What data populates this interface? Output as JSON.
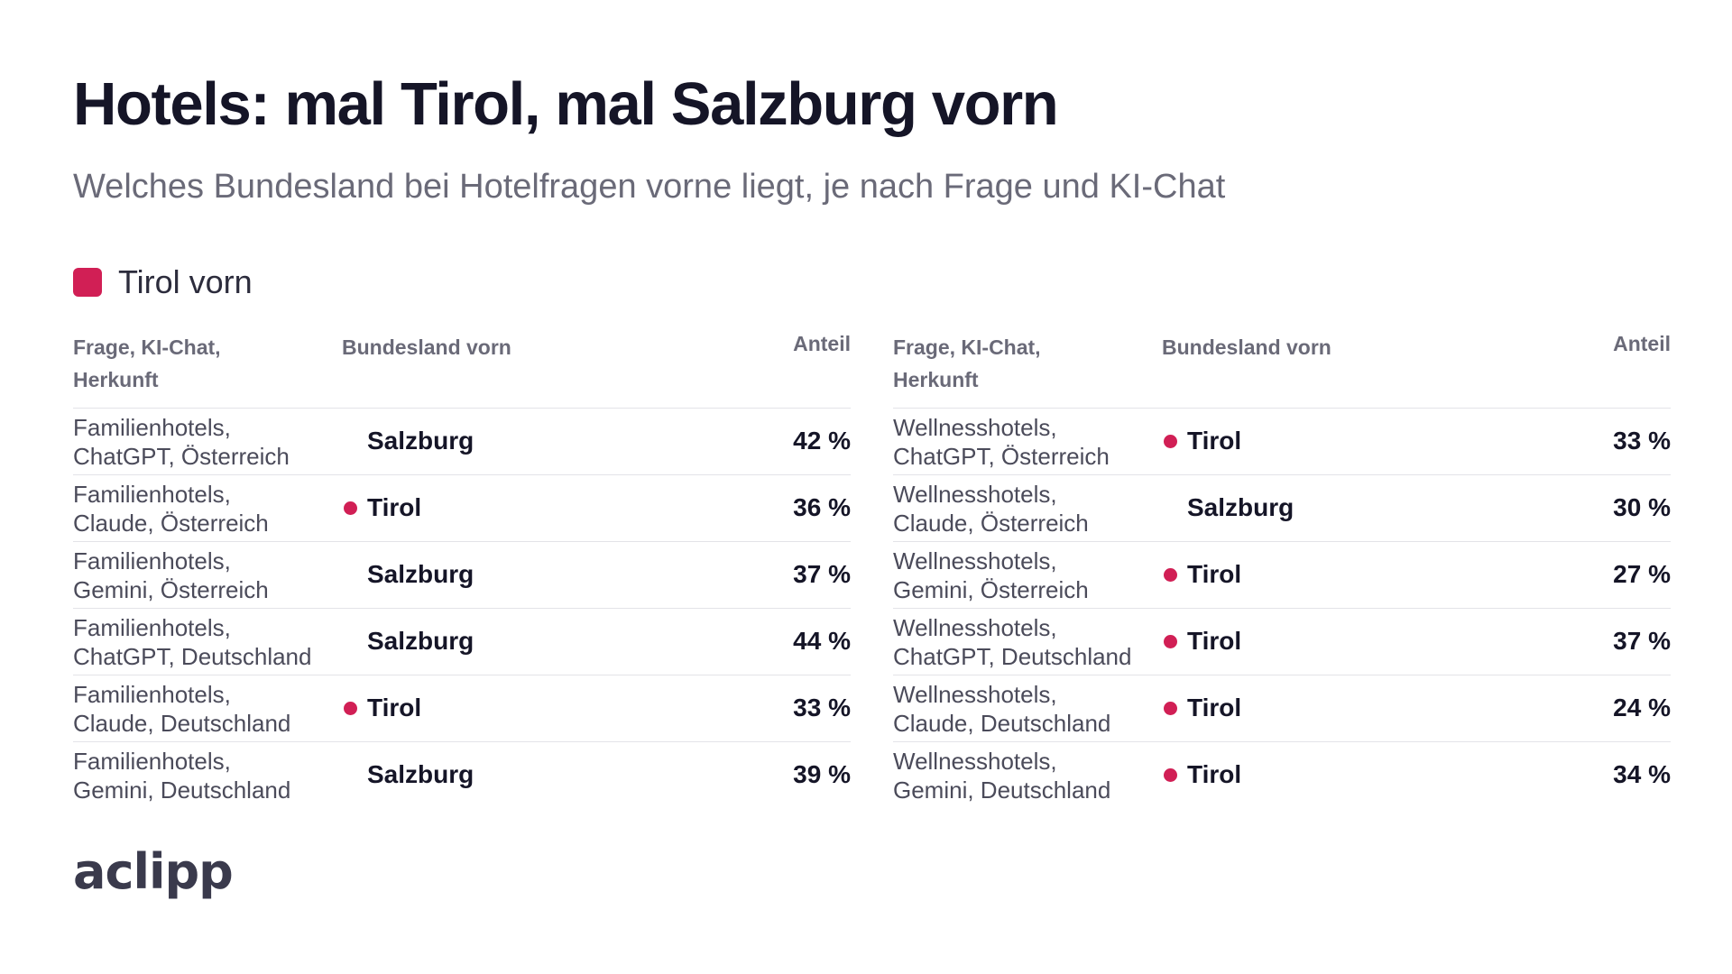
{
  "title": "Hotels: mal Tirol, mal Salzburg vorn",
  "subtitle": "Welches Bundesland bei Hotelfragen vorne liegt, je nach Frage und KI-Chat",
  "legend": {
    "label": "Tirol vorn",
    "color": "#d11f55"
  },
  "columns": {
    "question": "Frage, KI-Chat, Herkunft",
    "state": "Bundesland vorn",
    "share": "Anteil"
  },
  "logo": "aclipp",
  "chart_data": {
    "type": "table",
    "title": "Hotels: mal Tirol, mal Salzburg vorn",
    "subtitle": "Welches Bundesland bei Hotelfragen vorne liegt, je nach Frage und KI-Chat",
    "highlight": {
      "state": "Tirol",
      "color": "#d11f55",
      "legend": "Tirol vorn"
    },
    "tables": [
      {
        "rows": [
          {
            "l1": "Familienhotels,",
            "l2": "ChatGPT, Österreich",
            "state": "Salzburg",
            "share": "42 %",
            "value": 42
          },
          {
            "l1": "Familienhotels,",
            "l2": "Claude, Österreich",
            "state": "Tirol",
            "share": "36 %",
            "value": 36
          },
          {
            "l1": "Familienhotels,",
            "l2": "Gemini, Österreich",
            "state": "Salzburg",
            "share": "37 %",
            "value": 37
          },
          {
            "l1": "Familienhotels,",
            "l2": "ChatGPT, Deutschland",
            "state": "Salzburg",
            "share": "44 %",
            "value": 44
          },
          {
            "l1": "Familienhotels,",
            "l2": "Claude, Deutschland",
            "state": "Tirol",
            "share": "33 %",
            "value": 33
          },
          {
            "l1": "Familienhotels,",
            "l2": "Gemini, Deutschland",
            "state": "Salzburg",
            "share": "39 %",
            "value": 39
          }
        ]
      },
      {
        "rows": [
          {
            "l1": "Wellnesshotels,",
            "l2": "ChatGPT, Österreich",
            "state": "Tirol",
            "share": "33 %",
            "value": 33
          },
          {
            "l1": "Wellnesshotels,",
            "l2": "Claude, Österreich",
            "state": "Salzburg",
            "share": "30 %",
            "value": 30
          },
          {
            "l1": "Wellnesshotels,",
            "l2": "Gemini, Österreich",
            "state": "Tirol",
            "share": "27 %",
            "value": 27
          },
          {
            "l1": "Wellnesshotels,",
            "l2": "ChatGPT, Deutschland",
            "state": "Tirol",
            "share": "37 %",
            "value": 37
          },
          {
            "l1": "Wellnesshotels,",
            "l2": "Claude, Deutschland",
            "state": "Tirol",
            "share": "24 %",
            "value": 24
          },
          {
            "l1": "Wellnesshotels,",
            "l2": "Gemini, Deutschland",
            "state": "Tirol",
            "share": "34 %",
            "value": 34
          }
        ]
      }
    ]
  }
}
